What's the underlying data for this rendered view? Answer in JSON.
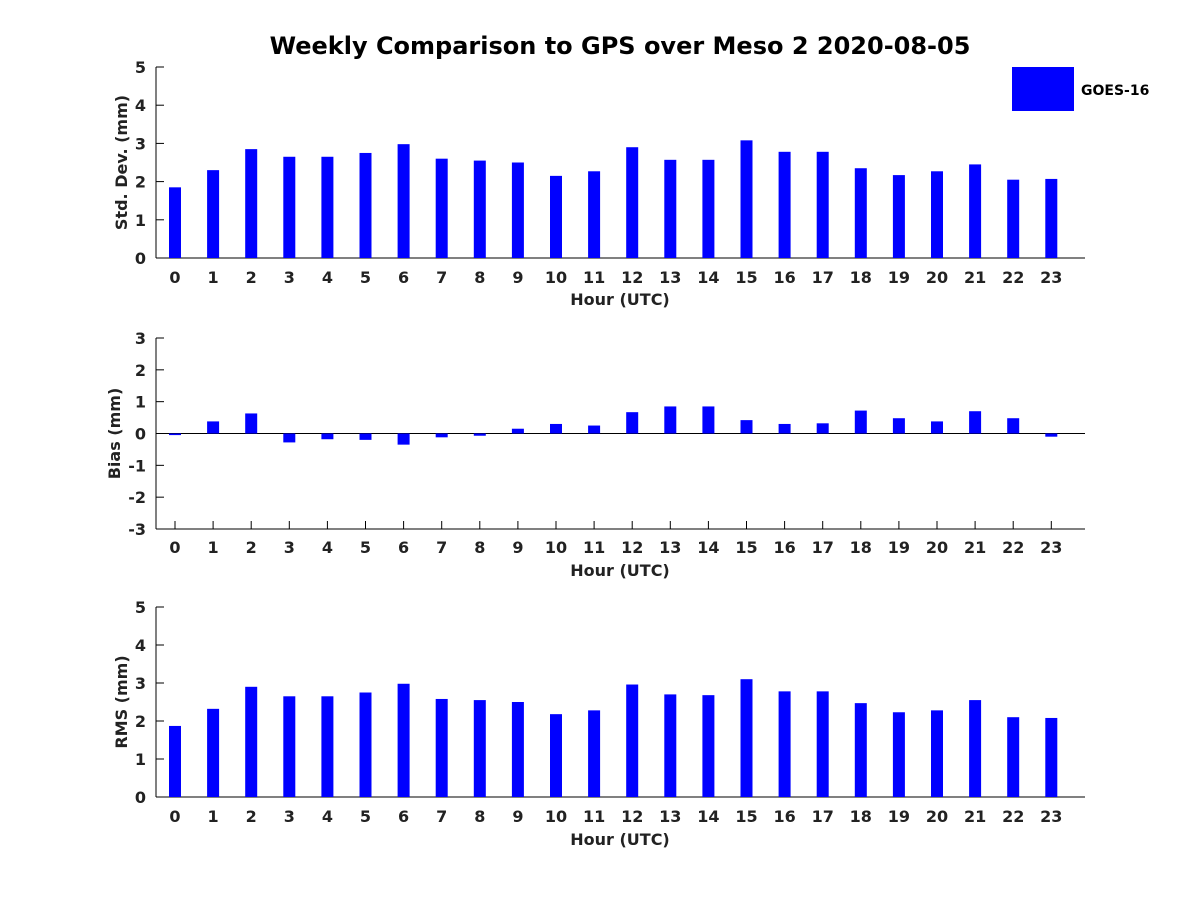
{
  "figure_title": "Weekly Comparison to GPS over Meso 2 2020-08-05",
  "colors": {
    "bar": "#0000ff",
    "axis": "#000000",
    "text": "#222222"
  },
  "chart_data": [
    {
      "id": "std",
      "type": "bar",
      "title": "Weekly Comparison to GPS over Meso 2 2020-08-05",
      "xlabel": "Hour (UTC)",
      "ylabel": "Std. Dev. (mm)",
      "ylim": [
        0,
        5
      ],
      "yticks": [
        0,
        1,
        2,
        3,
        4,
        5
      ],
      "categories": [
        "0",
        "1",
        "2",
        "3",
        "4",
        "5",
        "6",
        "7",
        "8",
        "9",
        "10",
        "11",
        "12",
        "13",
        "14",
        "15",
        "16",
        "17",
        "18",
        "19",
        "20",
        "21",
        "22",
        "23"
      ],
      "series": [
        {
          "name": "GOES-16",
          "values": [
            1.85,
            2.3,
            2.85,
            2.65,
            2.65,
            2.75,
            2.98,
            2.6,
            2.55,
            2.5,
            2.15,
            2.27,
            2.9,
            2.57,
            2.57,
            3.08,
            2.78,
            2.78,
            2.35,
            2.17,
            2.27,
            2.45,
            2.05,
            2.07
          ]
        }
      ],
      "legend": {
        "entries": [
          "GOES-16"
        ],
        "placement": "top-right"
      }
    },
    {
      "id": "bias",
      "type": "bar",
      "xlabel": "Hour (UTC)",
      "ylabel": "Bias (mm)",
      "ylim": [
        -3,
        3
      ],
      "yticks": [
        -3,
        -2,
        -1,
        0,
        1,
        2,
        3
      ],
      "categories": [
        "0",
        "1",
        "2",
        "3",
        "4",
        "5",
        "6",
        "7",
        "8",
        "9",
        "10",
        "11",
        "12",
        "13",
        "14",
        "15",
        "16",
        "17",
        "18",
        "19",
        "20",
        "21",
        "22",
        "23"
      ],
      "series": [
        {
          "name": "GOES-16",
          "values": [
            -0.05,
            0.38,
            0.63,
            -0.28,
            -0.18,
            -0.2,
            -0.35,
            -0.12,
            -0.07,
            0.15,
            0.3,
            0.25,
            0.67,
            0.85,
            0.85,
            0.42,
            0.3,
            0.32,
            0.72,
            0.48,
            0.38,
            0.7,
            0.48,
            -0.1
          ]
        }
      ]
    },
    {
      "id": "rms",
      "type": "bar",
      "xlabel": "Hour (UTC)",
      "ylabel": "RMS (mm)",
      "ylim": [
        0,
        5
      ],
      "yticks": [
        0,
        1,
        2,
        3,
        4,
        5
      ],
      "categories": [
        "0",
        "1",
        "2",
        "3",
        "4",
        "5",
        "6",
        "7",
        "8",
        "9",
        "10",
        "11",
        "12",
        "13",
        "14",
        "15",
        "16",
        "17",
        "18",
        "19",
        "20",
        "21",
        "22",
        "23"
      ],
      "series": [
        {
          "name": "GOES-16",
          "values": [
            1.87,
            2.32,
            2.9,
            2.65,
            2.65,
            2.75,
            2.98,
            2.58,
            2.55,
            2.5,
            2.18,
            2.28,
            2.96,
            2.7,
            2.68,
            3.1,
            2.78,
            2.78,
            2.47,
            2.23,
            2.28,
            2.55,
            2.1,
            2.08
          ]
        }
      ]
    }
  ]
}
